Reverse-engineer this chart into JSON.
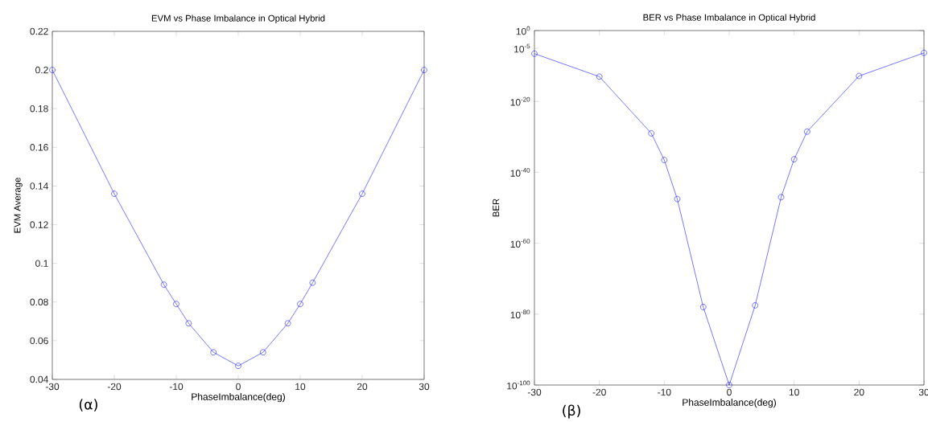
{
  "chart_data": [
    {
      "type": "line",
      "title": "EVM vs Phase Imbalance in Optical Hybrid",
      "xlabel": "PhaseImbalance(deg)",
      "ylabel": "EVM Average",
      "annotations": [
        "(α)"
      ],
      "x": [
        -30,
        -20,
        -12,
        -10,
        -8,
        -4,
        0,
        4,
        8,
        10,
        12,
        20,
        30
      ],
      "series": [
        {
          "color": "#0000ff",
          "values": [
            0.2,
            0.136,
            0.089,
            0.079,
            0.069,
            0.054,
            0.047,
            0.054,
            0.069,
            0.079,
            0.09,
            0.136,
            0.2
          ]
        }
      ],
      "xlim": [
        -30,
        30
      ],
      "xticks": [
        -30,
        -20,
        -10,
        0,
        10,
        20,
        30
      ],
      "ylim": [
        0.04,
        0.22
      ],
      "yticks": [
        0.04,
        0.06,
        0.08,
        0.1,
        0.12,
        0.14,
        0.16,
        0.18,
        0.2,
        0.22
      ],
      "marker": "circle",
      "line_style": "solid",
      "grid": false
    },
    {
      "type": "line",
      "title": "BER vs Phase Imbalance in Optical Hybrid",
      "xlabel": "PhaseImbalance(deg)",
      "ylabel": "BER",
      "annotations": [
        "(β)"
      ],
      "x": [
        -30,
        -20,
        -12,
        -10,
        -8,
        -4,
        0,
        4,
        8,
        10,
        12,
        20,
        30
      ],
      "series": [
        {
          "color": "#0000ff",
          "values": [
            3e-07,
            1e-13,
            1e-29,
            3e-37,
            3e-48,
            1e-78,
            1e-100,
            3e-78,
            1e-47,
            5e-37,
            3e-29,
            1.5e-13,
            5e-07
          ]
        }
      ],
      "xlim": [
        -30,
        30
      ],
      "xticks": [
        -30,
        -20,
        -10,
        0,
        10,
        20,
        30
      ],
      "ylim": [
        1e-100,
        1
      ],
      "log": "y",
      "yticks": [
        {
          "value": 1,
          "label": "10$^{0}$"
        },
        {
          "value": 1e-05,
          "label": "10$^{-5}$"
        },
        {
          "value": 1e-20,
          "label": "10$^{-20}$"
        },
        {
          "value": 1e-40,
          "label": "10$^{-40}$"
        },
        {
          "value": 1e-60,
          "label": "10$^{-60}$"
        },
        {
          "value": 1e-80,
          "label": "10$^{-80}$"
        },
        {
          "value": 1e-100,
          "label": "10$^{-100}$"
        }
      ],
      "marker": "circle",
      "line_style": "solid",
      "grid": false
    }
  ]
}
